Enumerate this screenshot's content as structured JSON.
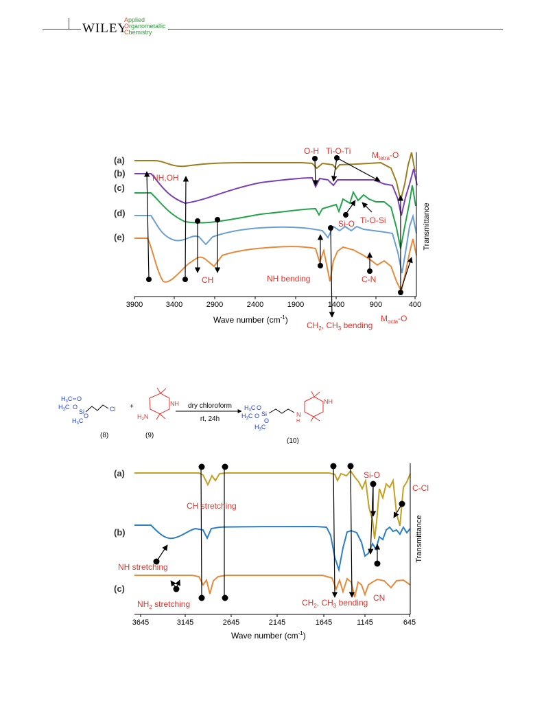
{
  "header": {
    "publisher": "WILEY",
    "journal_caps": [
      "A",
      "O",
      "C"
    ],
    "journal_rest": [
      "pplied",
      "rganometallic",
      "hemistry"
    ]
  },
  "figure1": {
    "xlabel_main": "Wave number (cm",
    "xlabel_sup": "-1",
    "xlabel_end": ")",
    "ylabel": "Transmittance",
    "ticks": [
      "3900",
      "3400",
      "2900",
      "2400",
      "1900",
      "1400",
      "900",
      "400"
    ],
    "series_labels": [
      "(a)",
      "(b)",
      "(c)",
      "(d)",
      "(e)"
    ],
    "annotations": {
      "nh_oh": "NH,OH",
      "ch": "CH",
      "oh": "O-H",
      "ti_o_ti": "Ti-O-Ti",
      "m_tetra_main": "M",
      "m_tetra_sub": "tetra",
      "m_tetra_end": "-O",
      "si_o": "Si-O",
      "ti_o_si": "Ti-O-Si",
      "nh_bending": "NH bending",
      "c_n": "C-N",
      "m_octa_main": "M",
      "m_octa_sub": "octa",
      "m_octa_end": "-O",
      "ch_bending_a": "CH",
      "ch_bending_sub1": "2",
      "ch_bending_b": ", CH",
      "ch_bending_sub2": "3",
      "ch_bending_c": " bending"
    }
  },
  "scheme": {
    "reagent_top": "dry chloroform",
    "reagent_bottom": "rt, 24h",
    "plus": "+",
    "label_8": "(8)",
    "label_9": "(9)",
    "label_10": "(10)",
    "atoms": {
      "h3c_o_1": "H3C",
      "o": "O",
      "si": "Si",
      "cl": "Cl",
      "nh": "NH",
      "h2n": "H2N",
      "n": "N",
      "h": "H"
    }
  },
  "figure2": {
    "xlabel_main": "Wave number (cm",
    "xlabel_sup": "-1",
    "xlabel_end": ")",
    "ylabel": "Transmittance",
    "ticks": [
      "3645",
      "3145",
      "2645",
      "2145",
      "1645",
      "1145",
      "645"
    ],
    "series_labels": [
      "(a)",
      "(b)",
      "(c)"
    ],
    "annotations": {
      "ch_stretching": "CH stretching",
      "si_o": "Si-O",
      "c_cl": "C-Cl",
      "nh_stretching": "NH stretching",
      "nh2_main": "NH",
      "nh2_sub": "2",
      "nh2_end": " stretching",
      "ch_bending_a": "CH",
      "ch_bending_sub1": "2",
      "ch_bending_b": ", CH",
      "ch_bending_sub2": "3",
      "ch_bending_c": " bending",
      "cn": "CN"
    }
  },
  "colors": {
    "olive": "#9c7d1c",
    "purple": "#7b3fb4",
    "green": "#22a34a",
    "lightblue": "#6a9fd4",
    "orange": "#e8893a",
    "gold": "#c4a020",
    "blue": "#2a7ec6",
    "red_label": "#e8302a",
    "chem_blue": "#1d3bd6",
    "chem_red": "#e8302a"
  }
}
